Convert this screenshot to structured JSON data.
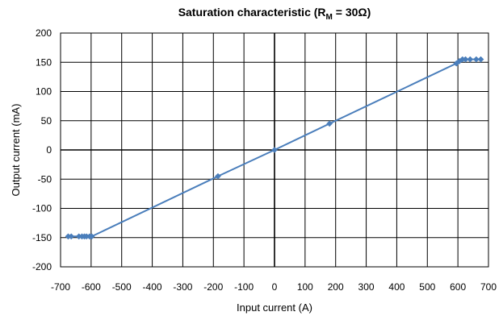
{
  "chart_data": {
    "type": "scatter",
    "title": "Saturation characteristic (R",
    "title_subscript": "M",
    "title_suffix": " = 30Ω)",
    "xlabel": "Input current (A)",
    "ylabel": "Output current (mA)",
    "xlim": [
      -700,
      700
    ],
    "ylim": [
      -200,
      200
    ],
    "x_ticks": [
      -700,
      -600,
      -500,
      -400,
      -300,
      -200,
      -100,
      0,
      100,
      200,
      300,
      400,
      500,
      600,
      700
    ],
    "y_ticks": [
      200,
      150,
      100,
      50,
      0,
      -50,
      -100,
      -150,
      -200
    ],
    "x_tick_labels": [
      "-700",
      "-600",
      "-500",
      "-400",
      "-300",
      "-200",
      "-100",
      "0",
      "100",
      "200",
      "300",
      "400",
      "500",
      "600",
      "700"
    ],
    "y_tick_labels": [
      "200",
      "150",
      "100",
      "50",
      "0",
      "-50",
      "-100",
      "-150",
      "-200"
    ],
    "grid": true,
    "series": [
      {
        "color": "#4a7ebb",
        "marker": "diamond",
        "x": [
          -675,
          -665,
          -640,
          -630,
          -622,
          -615,
          -605,
          -598,
          -185,
          0,
          180,
          595,
          605,
          615,
          625,
          640,
          660,
          675
        ],
        "y": [
          -148,
          -148,
          -148,
          -148,
          -148,
          -148,
          -148,
          -148,
          -45,
          0,
          45,
          148,
          152,
          155,
          155,
          155,
          155,
          155
        ]
      }
    ]
  }
}
